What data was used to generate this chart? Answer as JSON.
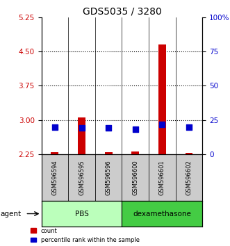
{
  "title": "GDS5035 / 3280",
  "samples": [
    "GSM596594",
    "GSM596595",
    "GSM596596",
    "GSM596600",
    "GSM596601",
    "GSM596602"
  ],
  "red_bar_bottom": [
    2.25,
    2.25,
    2.25,
    2.25,
    2.25,
    2.25
  ],
  "red_bar_top": [
    2.29,
    3.06,
    2.29,
    2.31,
    4.65,
    2.28
  ],
  "blue_square_values": [
    2.84,
    2.83,
    2.82,
    2.8,
    2.9,
    2.84
  ],
  "ylim_left": [
    2.25,
    5.25
  ],
  "ylim_right": [
    0,
    100
  ],
  "left_yticks": [
    2.25,
    3.0,
    3.75,
    4.5,
    5.25
  ],
  "right_yticks": [
    0,
    25,
    50,
    75,
    100
  ],
  "right_yticklabels": [
    "0",
    "25",
    "50",
    "75",
    "100%"
  ],
  "hlines": [
    3.0,
    3.75,
    4.5
  ],
  "groups": [
    {
      "label": "PBS",
      "indices": [
        0,
        1,
        2
      ],
      "color": "#bbffbb"
    },
    {
      "label": "dexamethasone",
      "indices": [
        3,
        4,
        5
      ],
      "color": "#44cc44"
    }
  ],
  "group_bar_color": "#cccccc",
  "red_color": "#cc0000",
  "blue_color": "#0000cc",
  "blue_square_size": 35,
  "bar_width": 0.28
}
